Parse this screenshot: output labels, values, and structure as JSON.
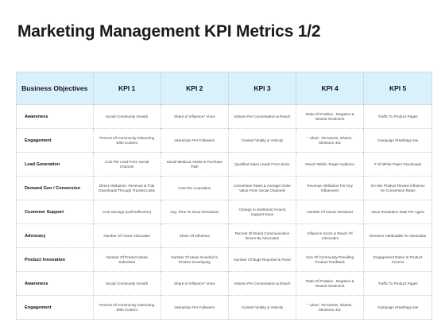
{
  "title": "Marketing Management KPI Metrics 1/2",
  "headers": [
    "Business Objectives",
    "KPI 1",
    "KPI 2",
    "KPI 3",
    "KPI 4",
    "KPI 5"
  ],
  "rows": [
    {
      "objective": "Awareness",
      "kpis": [
        "Social Community Growth",
        "Share of Influence* Voice",
        "Volume Per Conversation & Reach",
        "Ratio Of Positive , Negative & Neutral Sentiment",
        "Traffic To Product Pages"
      ]
    },
    {
      "objective": "Engagement",
      "kpis": [
        "Percent Of Community Interacting With Content",
        "Interaction Per Followers",
        "Content Virality & Velocity",
        "\" Likes\", Re-tweets, Shares, Mentions, Etc",
        "Campaign #Hashtag Use"
      ]
    },
    {
      "objective": "Lead Generation",
      "kpis": [
        "Cost Per Lead From Social Channel",
        "Social Media ̶S-Assist In Purchase Path",
        "Qualified Sales Leads From Socie",
        "Reach Within Target Audience",
        "# Of White Paper Downloads"
      ]
    },
    {
      "objective": "Demand Gen / Conversion",
      "kpis": [
        "Direct Attribution- Revenue & Trial Downloads Through Tracked Links",
        "Cost Per Acquisition",
        "Conversion Rates & Average Order Value From Social Channels",
        "Revenue Attribution For Key Influencers",
        "On-site Product Review Influence On Conversion Rates"
      ]
    },
    {
      "objective": "Customer Support",
      "kpis": [
        "Cost Savings (Call Deflection)",
        "Avg. Time To Issue Resolution",
        "Change In Sentiment Around Support Issue",
        "Number Of Issues Resolved",
        "Issue Resolution Rate Per Agent"
      ]
    },
    {
      "objective": "Advocacy",
      "kpis": [
        "Number Of Active Advocates",
        "Share Of Influence",
        "Percent Of Brand Communication Driven By Advocates",
        "Influence Score & Reach Of Advocates",
        "Revenue Attributable To Advocates"
      ]
    },
    {
      "objective": "Product Innovation",
      "kpis": [
        "Number Of Product Ideas Submitted",
        "Number Of Ideas Included In Product Developing",
        "Number Of Bugs Reported & Fixed",
        "Size Of Community Providing Product Feedback",
        "Engagement Rates In Product Forums"
      ]
    },
    {
      "objective": "Awareness",
      "kpis": [
        "Social Community Growth",
        "Share of Influence* Voice",
        "Volume Per Conversation & Reach",
        "Ratio Of Positive , Negative & Neutral Sentiment",
        "Traffic To Product Pages"
      ]
    },
    {
      "objective": "Engagement",
      "kpis": [
        "Percent Of Community Interacting With Content",
        "Interaction Per Followers",
        "Content Virality & Velocity",
        "\" Likes\", Re-tweets, Shares, Mentions, Etc",
        "Campaign #Hashtag Use"
      ]
    }
  ]
}
